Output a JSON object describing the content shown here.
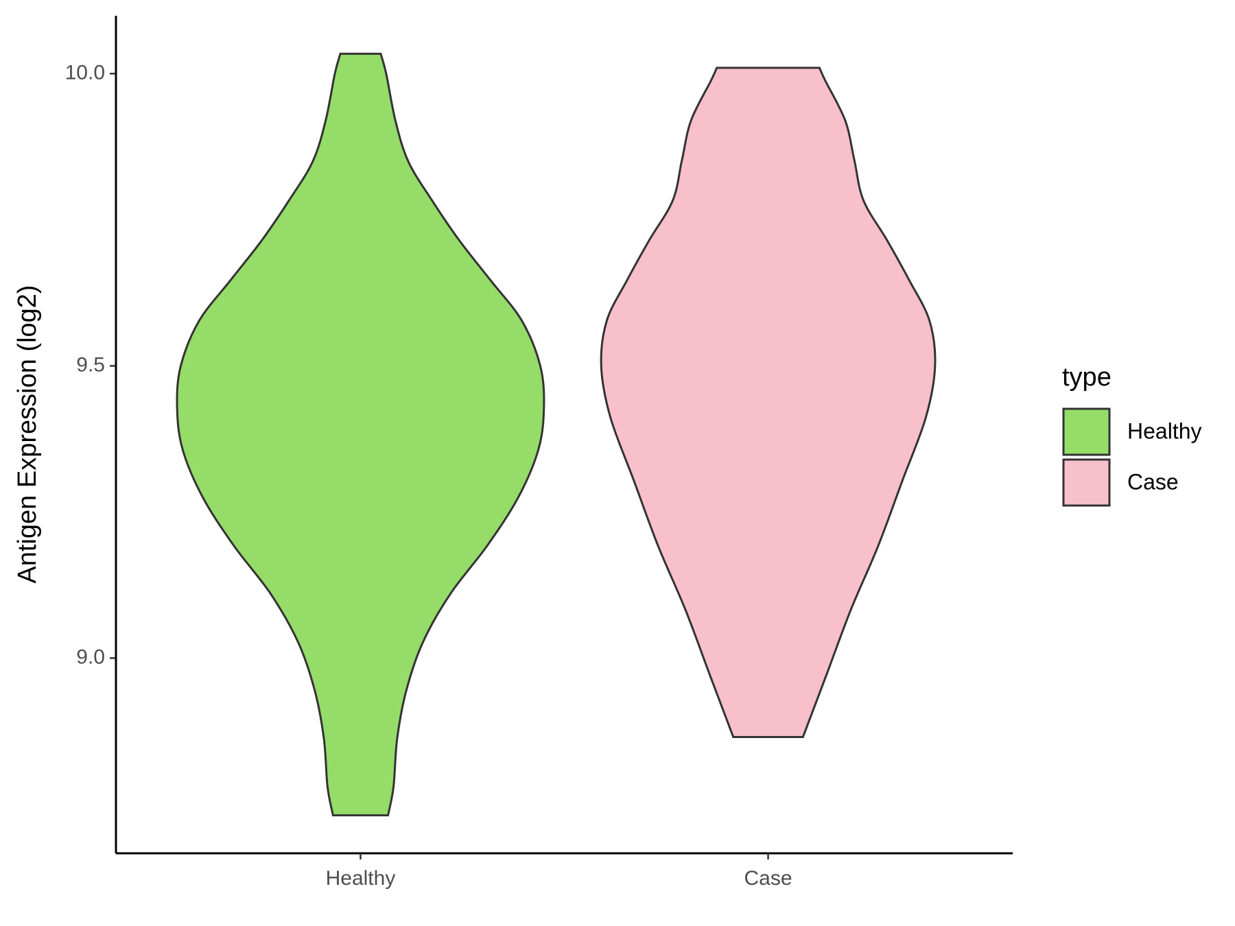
{
  "chart_data": {
    "type": "violin",
    "y_label": "Antigen Expression (log2)",
    "categories": [
      "Healthy",
      "Case"
    ],
    "legend_title": "type",
    "legend_position": "right",
    "ylim": [
      8.666,
      10.099
    ],
    "yticks": [
      {
        "value": 9.0,
        "label": "9.0"
      },
      {
        "value": 9.5,
        "label": "9.5"
      },
      {
        "value": 10.0,
        "label": "10.0"
      }
    ],
    "series": [
      {
        "name": "Healthy",
        "color": "#95dc69",
        "y": [
          10.034,
          10.0,
          9.92,
          9.85,
          9.783,
          9.714,
          9.646,
          9.577,
          9.5,
          9.429,
          9.357,
          9.275,
          9.192,
          9.11,
          9.027,
          8.945,
          8.863,
          8.78,
          8.731
        ],
        "density": [
          0.11,
          0.14,
          0.19,
          0.26,
          0.39,
          0.54,
          0.71,
          0.88,
          0.98,
          1.0,
          0.97,
          0.86,
          0.69,
          0.49,
          0.34,
          0.25,
          0.2,
          0.18,
          0.15
        ]
      },
      {
        "name": "Case",
        "color": "#f7c0cb",
        "y": [
          10.01,
          9.989,
          9.92,
          9.852,
          9.783,
          9.714,
          9.646,
          9.577,
          9.5,
          9.412,
          9.302,
          9.192,
          9.082,
          8.973,
          8.865
        ],
        "density": [
          0.28,
          0.31,
          0.42,
          0.47,
          0.52,
          0.65,
          0.77,
          0.88,
          0.91,
          0.86,
          0.73,
          0.6,
          0.45,
          0.32,
          0.19
        ]
      }
    ]
  }
}
